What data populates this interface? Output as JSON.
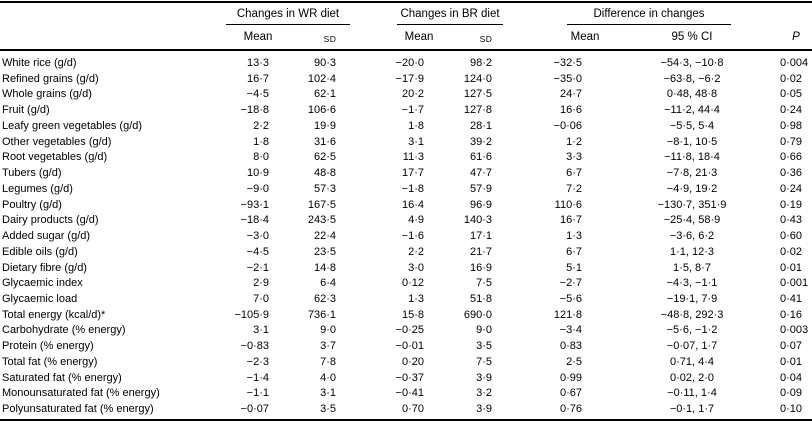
{
  "colors": {
    "text": "#000000",
    "background": "#ffffff",
    "rule": "#000000"
  },
  "table": {
    "groups": [
      {
        "label": "Changes in WR diet",
        "columns": [
          "Mean",
          "SD"
        ]
      },
      {
        "label": "Changes in BR diet",
        "columns": [
          "Mean",
          "SD"
        ]
      },
      {
        "label": "Difference in changes",
        "columns": [
          "Mean",
          "95 % CI"
        ]
      }
    ],
    "p_column_label": "P",
    "rows": [
      {
        "label": "White rice (g/d)",
        "wr_mean": "13·3",
        "wr_sd": "90·3",
        "br_mean": "−20·0",
        "br_sd": "98·2",
        "diff_mean": "−32·5",
        "ci": "−54·3, −10·8",
        "p": "0·004"
      },
      {
        "label": "Refined grains (g/d)",
        "wr_mean": "16·7",
        "wr_sd": "102·4",
        "br_mean": "−17·9",
        "br_sd": "124·0",
        "diff_mean": "−35·0",
        "ci": "−63·8, −6·2",
        "p": "0·02"
      },
      {
        "label": "Whole grains (g/d)",
        "wr_mean": "−4·5",
        "wr_sd": "62·1",
        "br_mean": "20·2",
        "br_sd": "127·5",
        "diff_mean": "24·7",
        "ci": "0·48, 48·8",
        "p": "0·05"
      },
      {
        "label": "Fruit (g/d)",
        "wr_mean": "−18·8",
        "wr_sd": "106·6",
        "br_mean": "−1·7",
        "br_sd": "127·8",
        "diff_mean": "16·6",
        "ci": "−11·2, 44·4",
        "p": "0·24"
      },
      {
        "label": "Leafy green vegetables (g/d)",
        "wr_mean": "2·2",
        "wr_sd": "19·9",
        "br_mean": "1·8",
        "br_sd": "28·1",
        "diff_mean": "−0·06",
        "ci": "−5·5, 5·4",
        "p": "0·98"
      },
      {
        "label": "Other vegetables (g/d)",
        "wr_mean": "1·8",
        "wr_sd": "31·6",
        "br_mean": "3·1",
        "br_sd": "39·2",
        "diff_mean": "1·2",
        "ci": "−8·1, 10·5",
        "p": "0·79"
      },
      {
        "label": "Root vegetables (g/d)",
        "wr_mean": "8·0",
        "wr_sd": "62·5",
        "br_mean": "11·3",
        "br_sd": "61·6",
        "diff_mean": "3·3",
        "ci": "−11·8, 18·4",
        "p": "0·66"
      },
      {
        "label": "Tubers (g/d)",
        "wr_mean": "10·9",
        "wr_sd": "48·8",
        "br_mean": "17·7",
        "br_sd": "47·7",
        "diff_mean": "6·7",
        "ci": "−7·8, 21·3",
        "p": "0·36"
      },
      {
        "label": "Legumes (g/d)",
        "wr_mean": "−9·0",
        "wr_sd": "57·3",
        "br_mean": "−1·8",
        "br_sd": "57·9",
        "diff_mean": "7·2",
        "ci": "−4·9, 19·2",
        "p": "0·24"
      },
      {
        "label": "Poultry (g/d)",
        "wr_mean": "−93·1",
        "wr_sd": "167·5",
        "br_mean": "16·4",
        "br_sd": "96·9",
        "diff_mean": "110·6",
        "ci": "−130·7, 351·9",
        "p": "0·19"
      },
      {
        "label": "Dairy products (g/d)",
        "wr_mean": "−18·4",
        "wr_sd": "243·5",
        "br_mean": "4·9",
        "br_sd": "140·3",
        "diff_mean": "16·7",
        "ci": "−25·4, 58·9",
        "p": "0·43"
      },
      {
        "label": "Added sugar (g/d)",
        "wr_mean": "−3·0",
        "wr_sd": "22·4",
        "br_mean": "−1·6",
        "br_sd": "17·1",
        "diff_mean": "1·3",
        "ci": "−3·6, 6·2",
        "p": "0·60"
      },
      {
        "label": "Edible oils (g/d)",
        "wr_mean": "−4·5",
        "wr_sd": "23·5",
        "br_mean": "2·2",
        "br_sd": "21·7",
        "diff_mean": "6·7",
        "ci": "1·1, 12·3",
        "p": "0·02"
      },
      {
        "label": "Dietary fibre (g/d)",
        "wr_mean": "−2·1",
        "wr_sd": "14·8",
        "br_mean": "3·0",
        "br_sd": "16·9",
        "diff_mean": "5·1",
        "ci": "1·5, 8·7",
        "p": "0·01"
      },
      {
        "label": "Glycaemic index",
        "wr_mean": "2·9",
        "wr_sd": "6·4",
        "br_mean": "0·12",
        "br_sd": "7·5",
        "diff_mean": "−2·7",
        "ci": "−4·3, −1·1",
        "p": "0·001"
      },
      {
        "label": "Glycaemic load",
        "wr_mean": "7·0",
        "wr_sd": "62·3",
        "br_mean": "1·3",
        "br_sd": "51·8",
        "diff_mean": "−5·6",
        "ci": "−19·1, 7·9",
        "p": "0·41"
      },
      {
        "label": "Total energy (kcal/d)*",
        "wr_mean": "−105·9",
        "wr_sd": "736·1",
        "br_mean": "15·8",
        "br_sd": "690·0",
        "diff_mean": "121·8",
        "ci": "−48·8, 292·3",
        "p": "0·16"
      },
      {
        "label": "Carbohydrate (% energy)",
        "wr_mean": "3·1",
        "wr_sd": "9·0",
        "br_mean": "−0·25",
        "br_sd": "9·0",
        "diff_mean": "−3·4",
        "ci": "−5·6, −1·2",
        "p": "0·003"
      },
      {
        "label": "Protein (% energy)",
        "wr_mean": "−0·83",
        "wr_sd": "3·7",
        "br_mean": "−0·01",
        "br_sd": "3·5",
        "diff_mean": "0·83",
        "ci": "−0·07, 1·7",
        "p": "0·07"
      },
      {
        "label": "Total fat (% energy)",
        "wr_mean": "−2·3",
        "wr_sd": "7·8",
        "br_mean": "0·20",
        "br_sd": "7·5",
        "diff_mean": "2·5",
        "ci": "0·71, 4·4",
        "p": "0·01"
      },
      {
        "label": "Saturated fat (% energy)",
        "wr_mean": "−1·4",
        "wr_sd": "4·0",
        "br_mean": "−0·37",
        "br_sd": "3·9",
        "diff_mean": "0·99",
        "ci": "0·02, 2·0",
        "p": "0·04"
      },
      {
        "label": "Monounsaturated fat (% energy)",
        "wr_mean": "−1·1",
        "wr_sd": "3·1",
        "br_mean": "−0·41",
        "br_sd": "3·2",
        "diff_mean": "0·67",
        "ci": "−0·11, 1·4",
        "p": "0·09"
      },
      {
        "label": "Polyunsaturated fat (% energy)",
        "wr_mean": "−0·07",
        "wr_sd": "3·5",
        "br_mean": "0·70",
        "br_sd": "3·9",
        "diff_mean": "0·76",
        "ci": "−0·1, 1·7",
        "p": "0·10"
      }
    ]
  }
}
